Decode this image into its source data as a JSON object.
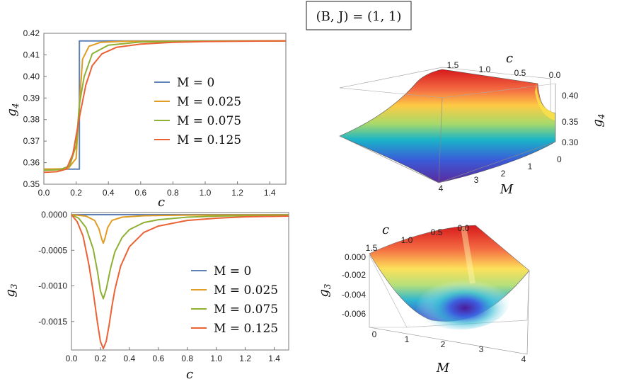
{
  "title": "(B, J) = (1, 1)",
  "chart_data": [
    {
      "id": "g4-plot",
      "type": "line",
      "xlabel": "c",
      "ylabel": "g4",
      "xlim": [
        0,
        1.5
      ],
      "ylim": [
        0.35,
        0.42
      ],
      "xticks": [
        "0.0",
        "0.2",
        "0.4",
        "0.6",
        "0.8",
        "1.0",
        "1.2",
        "1.4"
      ],
      "yticks": [
        "0.35",
        "0.36",
        "0.37",
        "0.38",
        "0.39",
        "0.40",
        "0.41",
        "0.42"
      ],
      "legend_position": "center-right",
      "series": [
        {
          "name": "M = 0",
          "color": "#5E81B5",
          "x": [
            0,
            0.22,
            0.22,
            1.5
          ],
          "values": [
            0.357,
            0.357,
            0.4165,
            0.4165
          ]
        },
        {
          "name": "M = 0.025",
          "color": "#E19C24",
          "x": [
            0,
            0.15,
            0.2,
            0.22,
            0.24,
            0.28,
            0.35,
            0.5,
            1.5
          ],
          "values": [
            0.357,
            0.3572,
            0.362,
            0.387,
            0.408,
            0.414,
            0.4158,
            0.4163,
            0.4165
          ]
        },
        {
          "name": "M = 0.075",
          "color": "#8FB032",
          "x": [
            0,
            0.1,
            0.16,
            0.2,
            0.22,
            0.25,
            0.3,
            0.4,
            0.6,
            1.0,
            1.5
          ],
          "values": [
            0.3565,
            0.3567,
            0.3585,
            0.368,
            0.387,
            0.4,
            0.4105,
            0.4145,
            0.416,
            0.4164,
            0.4165
          ]
        },
        {
          "name": "M = 0.125",
          "color": "#EB6235",
          "x": [
            0,
            0.08,
            0.14,
            0.18,
            0.22,
            0.26,
            0.3,
            0.36,
            0.45,
            0.6,
            0.8,
            1.0,
            1.5
          ],
          "values": [
            0.3555,
            0.3558,
            0.357,
            0.364,
            0.381,
            0.396,
            0.405,
            0.4105,
            0.4135,
            0.415,
            0.4158,
            0.4162,
            0.4165
          ]
        }
      ]
    },
    {
      "id": "g3-plot",
      "type": "line",
      "xlabel": "c",
      "ylabel": "g3",
      "xlim": [
        0,
        1.5
      ],
      "ylim": [
        -0.0019,
        3e-05
      ],
      "xticks": [
        "0.0",
        "0.2",
        "0.4",
        "0.6",
        "0.8",
        "1.0",
        "1.2",
        "1.4"
      ],
      "yticks": [
        "0.0000",
        "-0.0005",
        "-0.0010",
        "-0.0015"
      ],
      "legend_position": "bottom-right",
      "series": [
        {
          "name": "M = 0",
          "color": "#5E81B5",
          "x": [
            0,
            1.5
          ],
          "values": [
            0,
            0
          ]
        },
        {
          "name": "M = 0.025",
          "color": "#E19C24",
          "x": [
            0,
            0.1,
            0.16,
            0.19,
            0.21,
            0.22,
            0.23,
            0.25,
            0.28,
            0.35,
            0.5,
            0.8,
            1.5
          ],
          "values": [
            0,
            -2e-05,
            -8e-05,
            -0.0002,
            -0.00035,
            -0.0004,
            -0.00034,
            -0.00018,
            -8e-05,
            -3.5e-05,
            -1.5e-05,
            -6e-06,
            -2e-06
          ]
        },
        {
          "name": "M = 0.075",
          "color": "#8FB032",
          "x": [
            0,
            0.05,
            0.1,
            0.15,
            0.18,
            0.2,
            0.22,
            0.24,
            0.27,
            0.3,
            0.35,
            0.4,
            0.5,
            0.6,
            0.8,
            1.0,
            1.5
          ],
          "values": [
            0,
            -5e-05,
            -0.00018,
            -0.00048,
            -0.0008,
            -0.00107,
            -0.00118,
            -0.00105,
            -0.00075,
            -0.00052,
            -0.00032,
            -0.00021,
            -0.00011,
            -7e-05,
            -3.5e-05,
            -2e-05,
            -7e-06
          ]
        },
        {
          "name": "M = 0.125",
          "color": "#EB6235",
          "x": [
            0,
            0.04,
            0.08,
            0.12,
            0.15,
            0.18,
            0.2,
            0.22,
            0.24,
            0.26,
            0.28,
            0.3,
            0.34,
            0.4,
            0.5,
            0.6,
            0.8,
            1.0,
            1.2,
            1.5
          ],
          "values": [
            0,
            -0.0001,
            -0.0003,
            -0.0007,
            -0.00108,
            -0.00152,
            -0.00178,
            -0.00188,
            -0.00178,
            -0.00155,
            -0.00128,
            -0.00105,
            -0.00072,
            -0.00045,
            -0.00025,
            -0.00016,
            -8e-05,
            -5e-05,
            -3e-05,
            -2e-05
          ]
        }
      ]
    },
    {
      "id": "g4-surface",
      "type": "surface3d",
      "zlabel": "g4",
      "xlabel": "c",
      "ylabel": "M",
      "c_ticks": [
        "1.5",
        "1.0",
        "0.5",
        "0.0"
      ],
      "M_ticks": [
        "0",
        "1",
        "2",
        "3",
        "4"
      ],
      "z_ticks": [
        "0.40",
        "0.35",
        "0.30"
      ]
    },
    {
      "id": "g3-surface",
      "type": "surface3d",
      "zlabel": "g3",
      "xlabel": "c",
      "ylabel": "M",
      "c_ticks": [
        "1.5",
        "1.0",
        "0.5",
        "0.0"
      ],
      "M_ticks": [
        "0",
        "1",
        "2",
        "3",
        "4"
      ],
      "z_ticks": [
        "0.000",
        "-0.002",
        "-0.004",
        "-0.006"
      ]
    }
  ]
}
